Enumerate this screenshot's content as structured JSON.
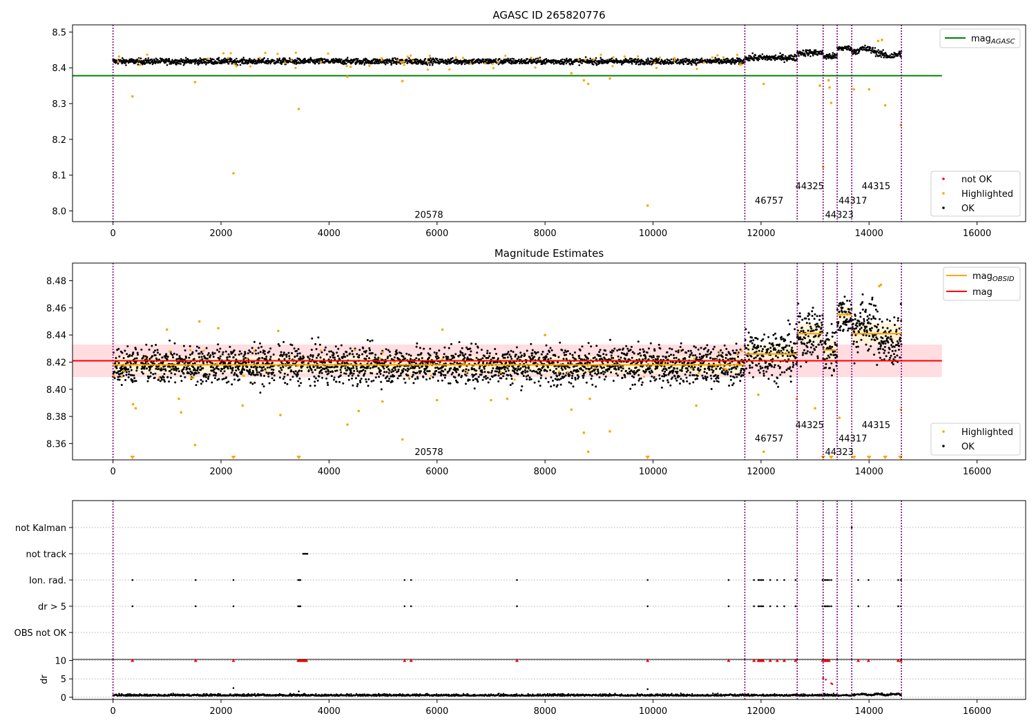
{
  "chart_data": [
    {
      "type": "scatter",
      "title": "AGASC ID 265820776",
      "xlim": [
        -750,
        16900
      ],
      "ylim": [
        7.97,
        8.52
      ],
      "xticks": [
        0,
        2000,
        4000,
        6000,
        8000,
        10000,
        12000,
        14000,
        16000
      ],
      "xtick_labels": [
        "0",
        "2000",
        "4000",
        "6000",
        "8000",
        "10000",
        "12000",
        "14000",
        "16000"
      ],
      "yticks": [
        8.0,
        8.1,
        8.2,
        8.3,
        8.4,
        8.5
      ],
      "ytick_labels": [
        "8.0",
        "8.1",
        "8.2",
        "8.3",
        "8.4",
        "8.5"
      ],
      "obs_boundaries": [
        0,
        11700,
        12670,
        13150,
        13410,
        13680,
        14600
      ],
      "obs_labels": [
        {
          "text": "20578",
          "x": 5850,
          "y": 7.99
        },
        {
          "text": "46757",
          "x": 12150,
          "y": 8.03
        },
        {
          "text": "44325",
          "x": 12900,
          "y": 8.07
        },
        {
          "text": "44323",
          "x": 13450,
          "y": 7.99
        },
        {
          "text": "44317",
          "x": 13700,
          "y": 8.03
        },
        {
          "text": "44315",
          "x": 14130,
          "y": 8.07
        }
      ],
      "segments": [
        {
          "x0": 0,
          "x1": 11700,
          "level": 8.418,
          "spread": 0.009
        },
        {
          "x0": 11700,
          "x1": 12670,
          "level": 8.428,
          "spread": 0.01
        },
        {
          "x0": 12670,
          "x1": 13150,
          "level": 8.442,
          "spread": 0.01
        },
        {
          "x0": 13150,
          "x1": 13410,
          "level": 8.432,
          "spread": 0.01
        },
        {
          "x0": 13410,
          "x1": 13680,
          "level": 8.455,
          "spread": 0.008
        },
        {
          "x0": 13680,
          "x1": 14600,
          "level": 8.443,
          "spread": 0.011
        }
      ],
      "hlines": [
        {
          "name": "mag$_{AGASC}$",
          "y": 8.378,
          "x0": -750,
          "x1": 15350,
          "color": "#008000"
        }
      ],
      "highlighted_outliers": [
        [
          360,
          8.32
        ],
        [
          1520,
          8.36
        ],
        [
          2230,
          8.105
        ],
        [
          3440,
          8.285
        ],
        [
          4340,
          8.375
        ],
        [
          5360,
          8.363
        ],
        [
          8490,
          8.385
        ],
        [
          8720,
          8.365
        ],
        [
          8800,
          8.355
        ],
        [
          9200,
          8.37
        ],
        [
          9900,
          8.015
        ],
        [
          12050,
          8.355
        ],
        [
          13090,
          8.35
        ],
        [
          13150,
          8.123
        ],
        [
          13250,
          8.365
        ],
        [
          13300,
          8.302
        ],
        [
          13720,
          8.34
        ],
        [
          14000,
          8.34
        ],
        [
          14300,
          8.295
        ],
        [
          14590,
          8.24
        ],
        [
          14170,
          8.475
        ],
        [
          14240,
          8.478
        ],
        [
          13270,
          8.345
        ]
      ],
      "legend": [
        {
          "name": "mag$_{AGASC}$",
          "color": "#008000",
          "kind": "line"
        },
        {
          "name": "not OK",
          "color": "#ff0000",
          "kind": "point"
        },
        {
          "name": "Highlighted",
          "color": "#ffa500",
          "kind": "point"
        },
        {
          "name": "OK",
          "color": "#000000",
          "kind": "point"
        }
      ],
      "legend_placement": [
        "upper right",
        "lower right"
      ]
    },
    {
      "type": "scatter",
      "title": "Magnitude Estimates",
      "xlim": [
        -750,
        16900
      ],
      "ylim": [
        8.348,
        8.493
      ],
      "xticks": [
        0,
        2000,
        4000,
        6000,
        8000,
        10000,
        12000,
        14000,
        16000
      ],
      "xtick_labels": [
        "0",
        "2000",
        "4000",
        "6000",
        "8000",
        "10000",
        "12000",
        "14000",
        "16000"
      ],
      "yticks": [
        8.36,
        8.38,
        8.4,
        8.42,
        8.44,
        8.46,
        8.48
      ],
      "ytick_labels": [
        "8.36",
        "8.38",
        "8.40",
        "8.42",
        "8.44",
        "8.46",
        "8.48"
      ],
      "obs_labels": [
        {
          "text": "20578",
          "x": 5850,
          "y": 8.354
        },
        {
          "text": "46757",
          "x": 12150,
          "y": 8.364
        },
        {
          "text": "44325",
          "x": 12900,
          "y": 8.374
        },
        {
          "text": "44323",
          "x": 13450,
          "y": 8.354
        },
        {
          "text": "44317",
          "x": 13700,
          "y": 8.364
        },
        {
          "text": "44315",
          "x": 14130,
          "y": 8.374
        }
      ],
      "mag": {
        "value": 8.421,
        "band": [
          8.409,
          8.433
        ],
        "x0": -750,
        "x1": 15350
      },
      "mag_obsid": [
        {
          "x0": 0,
          "x1": 11700,
          "y": 8.418
        },
        {
          "x0": 11700,
          "x1": 12670,
          "y": 8.426
        },
        {
          "x0": 12670,
          "x1": 13150,
          "y": 8.441
        },
        {
          "x0": 13150,
          "x1": 13410,
          "y": 8.429
        },
        {
          "x0": 13410,
          "x1": 13680,
          "y": 8.455
        },
        {
          "x0": 13680,
          "x1": 14600,
          "y": 8.441
        }
      ],
      "highlighted_outliers": [
        [
          370,
          8.389
        ],
        [
          420,
          8.386
        ],
        [
          1000,
          8.444
        ],
        [
          1220,
          8.393
        ],
        [
          1260,
          8.383
        ],
        [
          1520,
          8.359
        ],
        [
          2400,
          8.388
        ],
        [
          3100,
          8.381
        ],
        [
          4340,
          8.374
        ],
        [
          4550,
          8.384
        ],
        [
          4990,
          8.391
        ],
        [
          5360,
          8.363
        ],
        [
          6000,
          8.392
        ],
        [
          6100,
          8.444
        ],
        [
          7000,
          8.392
        ],
        [
          7300,
          8.393
        ],
        [
          8000,
          8.44
        ],
        [
          8490,
          8.385
        ],
        [
          8720,
          8.368
        ],
        [
          8800,
          8.354
        ],
        [
          8830,
          8.393
        ],
        [
          9200,
          8.369
        ],
        [
          10800,
          8.388
        ],
        [
          12050,
          8.354
        ],
        [
          11950,
          8.396
        ],
        [
          12660,
          8.393
        ],
        [
          13000,
          8.386
        ],
        [
          13450,
          8.379
        ],
        [
          14190,
          8.476
        ],
        [
          14220,
          8.477
        ],
        [
          14590,
          8.385
        ],
        [
          3060,
          8.443
        ],
        [
          1600,
          8.45
        ],
        [
          1950,
          8.445
        ]
      ],
      "clipped_markers_x": [
        360,
        2230,
        3440,
        9900,
        13150,
        13300,
        13720,
        14000,
        14300,
        14580
      ],
      "legend": [
        {
          "name": "mag$_{OBSID}$",
          "color": "#ffa500",
          "kind": "line"
        },
        {
          "name": "mag",
          "color": "#ff0000",
          "kind": "line"
        },
        {
          "name": "Highlighted",
          "color": "#ffa500",
          "kind": "point"
        },
        {
          "name": "OK",
          "color": "#000000",
          "kind": "point"
        }
      ],
      "legend_placement": [
        "upper right",
        "lower right"
      ]
    },
    {
      "type": "scatter",
      "title": "",
      "xlim": [
        -750,
        16900
      ],
      "xticks": [
        0,
        2000,
        4000,
        6000,
        8000,
        10000,
        12000,
        14000,
        16000
      ],
      "xtick_labels": [
        "0",
        "2000",
        "4000",
        "6000",
        "8000",
        "10000",
        "12000",
        "14000",
        "16000"
      ],
      "flag_rows": [
        "not Kalman",
        "not track",
        "Ion. rad.",
        "dr > 5",
        "OBS not OK"
      ],
      "flag_points": {
        "not Kalman": [
          13680
        ],
        "not track": [
          3520,
          3540,
          3560,
          3580,
          3600
        ],
        "Ion. rad.": [
          360,
          1530,
          2230,
          3430,
          3450,
          3470,
          5400,
          5520,
          7480,
          9900,
          11400,
          11870,
          11950,
          11980,
          12010,
          12040,
          12170,
          12300,
          12430,
          12640,
          13140,
          13180,
          13200,
          13230,
          13260,
          13300,
          13800,
          13990,
          14540,
          14590
        ],
        "dr > 5": [
          360,
          1530,
          2230,
          3430,
          3450,
          3470,
          5400,
          5520,
          7480,
          9900,
          11400,
          11870,
          11950,
          11980,
          12010,
          12040,
          12170,
          12300,
          12430,
          12640,
          13140,
          13180,
          13200,
          13230,
          13260,
          13300,
          13800,
          13990,
          14540,
          14590
        ],
        "OBS not OK": []
      },
      "dr_ylabel": "dr",
      "dr_yticks": [
        0,
        5,
        10
      ],
      "dr_ytick_labels": [
        "0",
        "5",
        "10"
      ],
      "dr_ylim": [
        -0.6,
        10.3
      ],
      "dr_clipped_x": [
        360,
        1530,
        2230,
        3430,
        3450,
        3470,
        3500,
        3520,
        3540,
        3560,
        3580,
        5400,
        5520,
        7480,
        9900,
        11400,
        11870,
        11950,
        11980,
        12010,
        12040,
        12170,
        12300,
        12430,
        12640,
        13140,
        13180,
        13200,
        13230,
        13260,
        13800,
        13990,
        14540,
        14590
      ],
      "dr_high": [
        [
          2230,
          2.5
        ],
        [
          3440,
          1.6
        ],
        [
          9900,
          2.2
        ],
        [
          13150,
          5.2
        ],
        [
          13200,
          4.8
        ],
        [
          13300,
          3.8
        ],
        [
          13320,
          3.6
        ]
      ]
    }
  ]
}
